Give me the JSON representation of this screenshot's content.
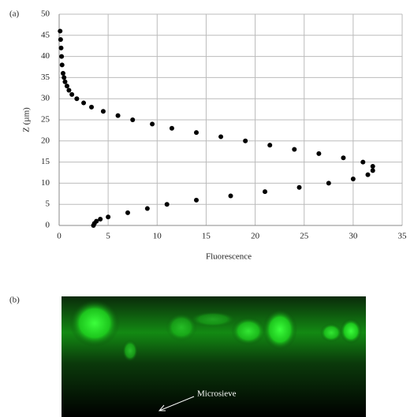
{
  "chart_data": {
    "type": "scatter",
    "panel_label": "(a)",
    "x_label": "Fluorescence",
    "y_label": "Z (µm)",
    "series": [
      {
        "color": "#000000",
        "x": [
          3.5,
          3.6,
          3.8,
          4.2,
          5,
          7,
          9,
          11,
          14,
          17.5,
          21,
          24.5,
          27.5,
          30,
          31.5,
          32,
          32,
          31,
          29,
          26.5,
          24,
          21.5,
          19,
          16.5,
          14,
          11.5,
          9.5,
          7.5,
          6,
          4.5,
          3.3,
          2.5,
          1.8,
          1.3,
          1,
          0.8,
          0.6,
          0.5,
          0.4,
          0.3,
          0.25,
          0.2,
          0.15,
          0.1
        ],
        "y": [
          0,
          0.5,
          1,
          1.5,
          2,
          3,
          4,
          5,
          6,
          7,
          8,
          9,
          10,
          11,
          12,
          13,
          14,
          15,
          16,
          17,
          18,
          19,
          20,
          21,
          22,
          23,
          24,
          25,
          26,
          27,
          28,
          29,
          30,
          31,
          32,
          33,
          34,
          35,
          36,
          38,
          40,
          42,
          44,
          46
        ]
      }
    ],
    "xlim": [
      0,
      35
    ],
    "xticks": [
      0,
      5,
      10,
      15,
      20,
      25,
      30,
      35
    ],
    "ylim": [
      0,
      50
    ],
    "yticks": [
      0,
      5,
      10,
      15,
      20,
      25,
      30,
      35,
      40,
      45,
      50
    ],
    "grid": true
  },
  "panel_b": {
    "label": "(b)",
    "annotation": "Microsieve"
  }
}
